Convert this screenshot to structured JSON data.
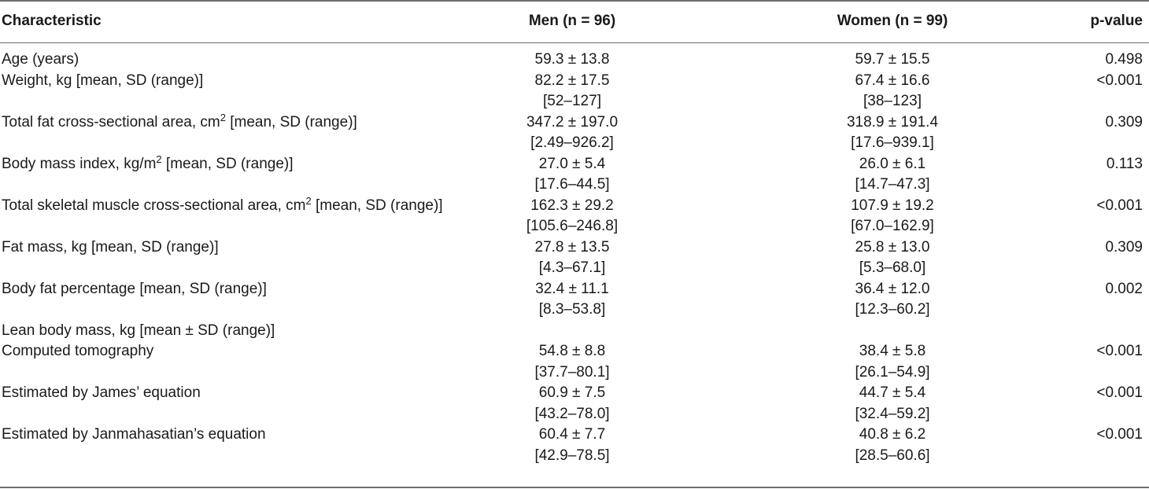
{
  "header": {
    "characteristic": "Characteristic",
    "men": "Men (n = 96)",
    "women": "Women (n = 99)",
    "pvalue": "p-value"
  },
  "rows": [
    {
      "label": "Age (years)",
      "label_sup": "",
      "label_after": "",
      "men": "59.3 ± 13.8",
      "men_range": "",
      "women": "59.7 ± 15.5",
      "women_range": "",
      "p": "0.498"
    },
    {
      "label": "Weight, kg [mean, SD (range)]",
      "label_sup": "",
      "label_after": "",
      "men": "82.2 ± 17.5",
      "men_range": "[52–127]",
      "women": "67.4 ± 16.6",
      "women_range": "[38–123]",
      "p": "<0.001"
    },
    {
      "label": "Total fat cross-sectional area, cm",
      "label_sup": "2",
      "label_after": " [mean, SD (range)]",
      "men": "347.2 ± 197.0",
      "men_range": "[2.49–926.2]",
      "women": "318.9 ± 191.4",
      "women_range": "[17.6–939.1]",
      "p": "0.309"
    },
    {
      "label": "Body mass index, kg/m",
      "label_sup": "2",
      "label_after": " [mean, SD (range)]",
      "men": "27.0 ± 5.4",
      "men_range": "[17.6–44.5]",
      "women": "26.0 ± 6.1",
      "women_range": "[14.7–47.3]",
      "p": "0.113"
    },
    {
      "label": "Total skeletal muscle cross-sectional area, cm",
      "label_sup": "2",
      "label_after": " [mean, SD (range)]",
      "men": "162.3 ± 29.2",
      "men_range": "[105.6–246.8]",
      "women": "107.9 ± 19.2",
      "women_range": "[67.0–162.9]",
      "p": "<0.001"
    },
    {
      "label": "Fat mass, kg [mean, SD (range)]",
      "label_sup": "",
      "label_after": "",
      "men": "27.8 ± 13.5",
      "men_range": "[4.3–67.1]",
      "women": "25.8 ± 13.0",
      "women_range": "[5.3–68.0]",
      "p": "0.309"
    },
    {
      "label": "Body fat percentage [mean, SD (range)]",
      "label_sup": "",
      "label_after": "",
      "men": "32.4 ± 11.1",
      "men_range": "[8.3–53.8]",
      "women": "36.4 ± 12.0",
      "women_range": "[12.3–60.2]",
      "p": "0.002"
    },
    {
      "label": "Lean body mass, kg [mean ± SD (range)]",
      "label_sup": "",
      "label_after": "",
      "men": "",
      "men_range": "",
      "women": "",
      "women_range": "",
      "p": ""
    },
    {
      "label": "Computed tomography",
      "label_sup": "",
      "label_after": "",
      "men": "54.8 ± 8.8",
      "men_range": "[37.7–80.1]",
      "women": "38.4 ± 5.8",
      "women_range": "[26.1–54.9]",
      "p": "<0.001"
    },
    {
      "label": "Estimated by James’ equation",
      "label_sup": "",
      "label_after": "",
      "men": "60.9 ± 7.5",
      "men_range": "[43.2–78.0]",
      "women": "44.7 ± 5.4",
      "women_range": "[32.4–59.2]",
      "p": "<0.001"
    },
    {
      "label": "Estimated by Janmahasatian’s equation",
      "label_sup": "",
      "label_after": "",
      "men": "60.4 ± 7.7",
      "men_range": "[42.9–78.5]",
      "women": "40.8 ± 6.2",
      "women_range": "[28.5–60.6]",
      "p": "<0.001"
    }
  ]
}
